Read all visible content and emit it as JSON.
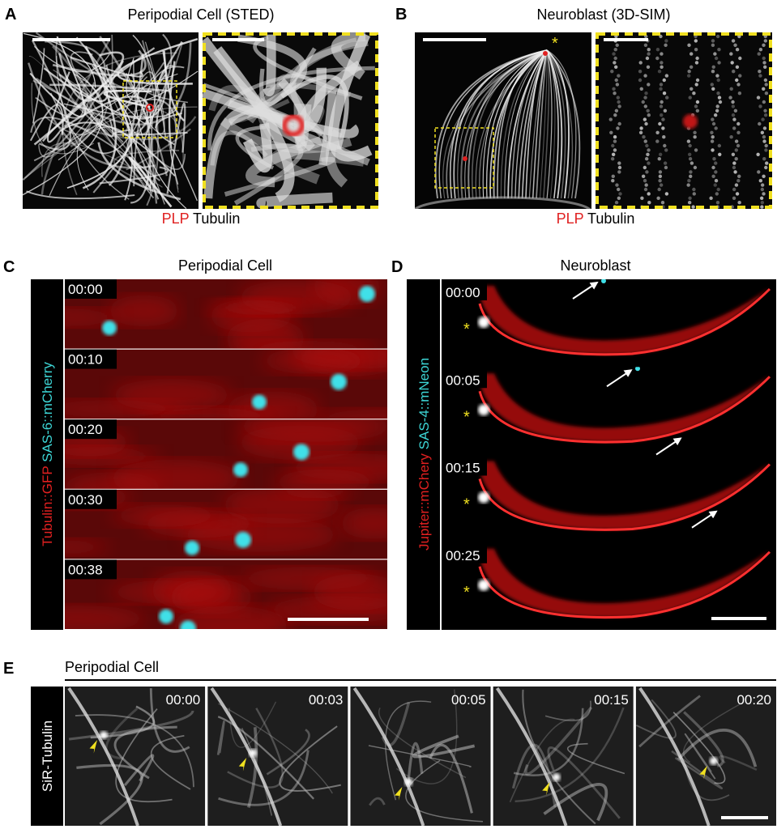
{
  "panels": {
    "A": {
      "label": "A",
      "title": "Peripodial Cell (STED)",
      "legend": [
        "PLP",
        "Tubulin"
      ]
    },
    "B": {
      "label": "B",
      "title": "Neuroblast (3D-SIM)",
      "legend": [
        "PLP",
        "Tubulin"
      ],
      "marker": "*"
    },
    "C": {
      "label": "C",
      "title": "Peripodial Cell",
      "channels": [
        "Tubulin::GFP",
        "SAS-6::mCherry"
      ],
      "timestamps": [
        "00:00",
        "00:10",
        "00:20",
        "00:30",
        "00:38"
      ]
    },
    "D": {
      "label": "D",
      "title": "Neuroblast",
      "channels": [
        "Jupiter::mChery",
        "SAS-4::mNeon"
      ],
      "timestamps": [
        "00:00",
        "00:05",
        "00:15",
        "00:25"
      ],
      "marker": "*"
    },
    "E": {
      "label": "E",
      "title": "Peripodial Cell",
      "channel": "SiR-Tubulin",
      "timestamps": [
        "00:00",
        "00:03",
        "00:05",
        "00:15",
        "00:20"
      ]
    }
  }
}
